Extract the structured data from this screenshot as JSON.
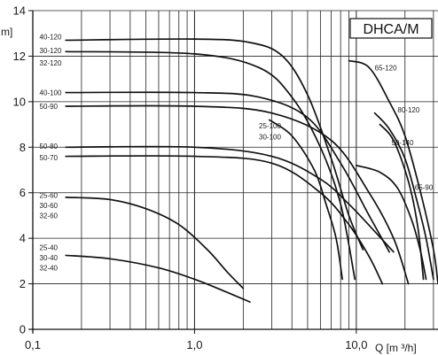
{
  "chart_data": {
    "type": "line",
    "badge": "DHCA/M",
    "y_unit": "m]",
    "x_unit": "Q [m ³/h]",
    "x_scale": "log",
    "x_range": [
      0.1,
      32
    ],
    "y_range": [
      0,
      14
    ],
    "grid": true,
    "x_tick_labels": [
      {
        "value": 0.1,
        "text": "0,1"
      },
      {
        "value": 1,
        "text": "1,0"
      },
      {
        "value": 10,
        "text": "10,0"
      }
    ],
    "y_tick_labels": [
      0,
      2,
      4,
      6,
      8,
      10,
      12,
      14
    ],
    "series": [
      {
        "labels": [
          "40-120"
        ],
        "points": [
          [
            0.16,
            12.7
          ],
          [
            1,
            12.75
          ],
          [
            2.2,
            12.6
          ],
          [
            3.5,
            12.0
          ],
          [
            5,
            10.3
          ],
          [
            7,
            7.5
          ],
          [
            9,
            5.0
          ],
          [
            11,
            3.5
          ]
        ]
      },
      {
        "labels": [
          "30-120",
          "32-120"
        ],
        "points": [
          [
            0.16,
            12.2
          ],
          [
            1,
            12.1
          ],
          [
            2.5,
            11.5
          ],
          [
            4,
            10.2
          ],
          [
            6,
            8.0
          ],
          [
            8,
            5.5
          ],
          [
            9.8,
            2.2
          ]
        ]
      },
      {
        "labels": [
          "65-120"
        ],
        "points": [
          [
            9,
            11.8
          ],
          [
            12,
            11.5
          ],
          [
            16,
            10.0
          ],
          [
            20,
            8.5
          ],
          [
            25,
            6.0
          ],
          [
            30,
            3.5
          ],
          [
            32,
            2.0
          ]
        ]
      },
      {
        "labels": [
          "40-100"
        ],
        "points": [
          [
            0.16,
            10.4
          ],
          [
            1,
            10.4
          ],
          [
            2.5,
            10.2
          ],
          [
            5,
            9.3
          ],
          [
            8,
            7.3
          ],
          [
            12,
            5.0
          ],
          [
            16,
            3.4
          ]
        ]
      },
      {
        "labels": [
          "50-90"
        ],
        "points": [
          [
            0.16,
            9.8
          ],
          [
            1,
            9.8
          ],
          [
            3,
            9.5
          ],
          [
            7,
            8.3
          ],
          [
            12,
            6.0
          ],
          [
            17,
            4.0
          ],
          [
            21,
            2.0
          ]
        ]
      },
      {
        "labels": [
          "80-120"
        ],
        "points": [
          [
            13,
            9.5
          ],
          [
            16,
            8.8
          ],
          [
            20,
            7.5
          ],
          [
            24,
            5.5
          ],
          [
            27,
            4.0
          ],
          [
            30,
            2.2
          ]
        ]
      },
      {
        "labels": [
          "50-140"
        ],
        "points": [
          [
            14,
            9.0
          ],
          [
            17,
            8.3
          ],
          [
            21,
            6.5
          ],
          [
            24,
            4.5
          ],
          [
            26,
            2.2
          ]
        ]
      },
      {
        "labels": [
          "25-100",
          "30-100"
        ],
        "points": [
          [
            2.9,
            9.2
          ],
          [
            4,
            8.5
          ],
          [
            5.5,
            7.0
          ],
          [
            6.5,
            5.5
          ],
          [
            7.5,
            4.0
          ],
          [
            8.2,
            2.2
          ]
        ]
      },
      {
        "labels": [
          "50-80"
        ],
        "points": [
          [
            0.16,
            8.0
          ],
          [
            1,
            8.0
          ],
          [
            3,
            7.6
          ],
          [
            6,
            6.6
          ],
          [
            9,
            5.5
          ],
          [
            13,
            4.3
          ],
          [
            17,
            3.4
          ]
        ]
      },
      {
        "labels": [
          "50-70"
        ],
        "points": [
          [
            0.16,
            7.6
          ],
          [
            1,
            7.6
          ],
          [
            3,
            7.3
          ],
          [
            6,
            6.0
          ],
          [
            9,
            4.6
          ],
          [
            12,
            3.2
          ],
          [
            14.5,
            2.0
          ]
        ]
      },
      {
        "labels": [
          "65-90"
        ],
        "points": [
          [
            10,
            7.2
          ],
          [
            14,
            6.9
          ],
          [
            18,
            6.2
          ],
          [
            22,
            4.8
          ],
          [
            25,
            3.4
          ],
          [
            27,
            2.2
          ]
        ]
      },
      {
        "labels": [
          "25-60",
          "30-60",
          "32-60"
        ],
        "points": [
          [
            0.16,
            5.8
          ],
          [
            0.3,
            5.7
          ],
          [
            0.5,
            5.3
          ],
          [
            0.8,
            4.6
          ],
          [
            1.2,
            3.5
          ],
          [
            1.6,
            2.5
          ],
          [
            2,
            1.8
          ]
        ]
      },
      {
        "labels": [
          "25-40",
          "30-40",
          "32-40"
        ],
        "points": [
          [
            0.16,
            3.25
          ],
          [
            0.3,
            3.1
          ],
          [
            0.6,
            2.7
          ],
          [
            1,
            2.2
          ],
          [
            1.5,
            1.7
          ],
          [
            2.2,
            1.2
          ]
        ]
      }
    ],
    "series_label_positions": {
      "40-120": [
        0.11,
        12.85
      ],
      "30-120": [
        0.11,
        12.25
      ],
      "32-120": [
        0.11,
        11.7
      ],
      "65-120": [
        13,
        11.5
      ],
      "40-100": [
        0.11,
        10.4
      ],
      "50-90": [
        0.11,
        9.8
      ],
      "80-120": [
        18,
        9.65
      ],
      "50-140": [
        16.5,
        8.2
      ],
      "25-100": [
        2.5,
        8.95
      ],
      "30-100": [
        2.5,
        8.45
      ],
      "50-80": [
        0.11,
        8.05
      ],
      "50-70": [
        0.11,
        7.55
      ],
      "65-90": [
        23,
        6.25
      ],
      "25-60": [
        0.11,
        5.9
      ],
      "30-60": [
        0.11,
        5.45
      ],
      "32-60": [
        0.11,
        5.0
      ],
      "25-40": [
        0.11,
        3.6
      ],
      "30-40": [
        0.11,
        3.15
      ],
      "32-40": [
        0.11,
        2.7
      ]
    }
  }
}
